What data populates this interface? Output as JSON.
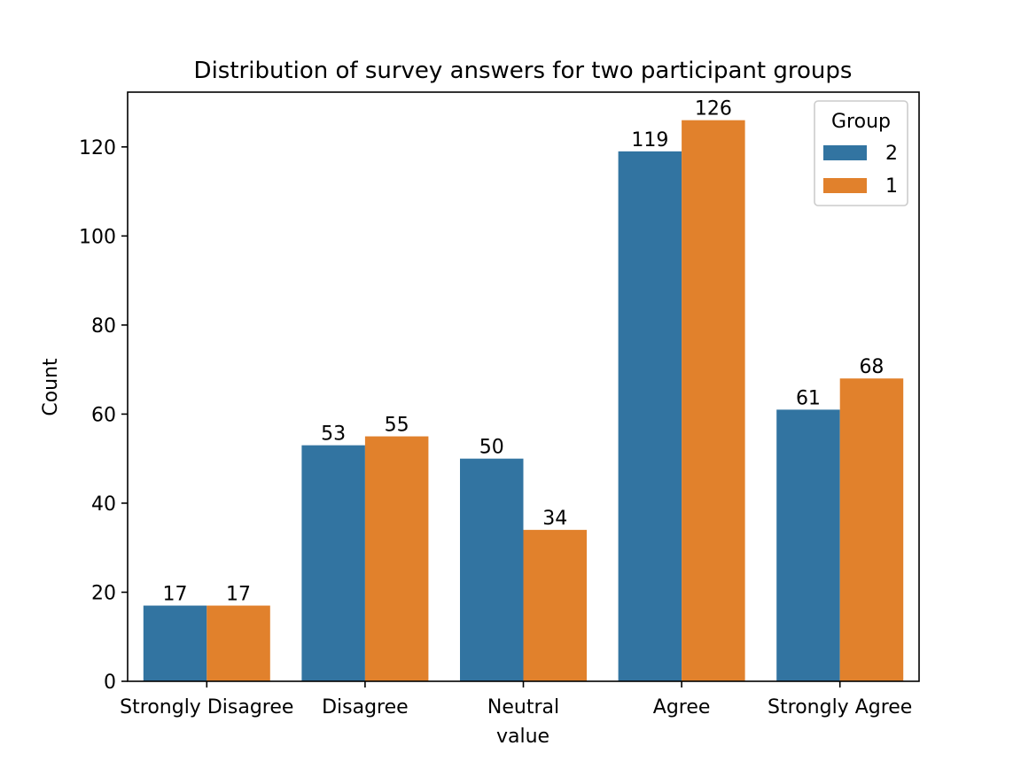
{
  "chart_data": {
    "type": "bar",
    "title": "Distribution of survey answers for two participant groups",
    "xlabel": "value",
    "ylabel": "Count",
    "categories": [
      "Strongly Disagree",
      "Disagree",
      "Neutral",
      "Agree",
      "Strongly Agree"
    ],
    "series": [
      {
        "name": "2",
        "color": "#3274a1",
        "values": [
          17,
          53,
          50,
          119,
          61
        ]
      },
      {
        "name": "1",
        "color": "#e1812c",
        "values": [
          17,
          55,
          34,
          126,
          68
        ]
      }
    ],
    "ylim": [
      0,
      132.3
    ],
    "yticks": [
      0,
      20,
      40,
      60,
      80,
      100,
      120
    ],
    "grid": false,
    "legend": {
      "title": "Group",
      "placement": "top-right"
    },
    "data_labels": true
  }
}
